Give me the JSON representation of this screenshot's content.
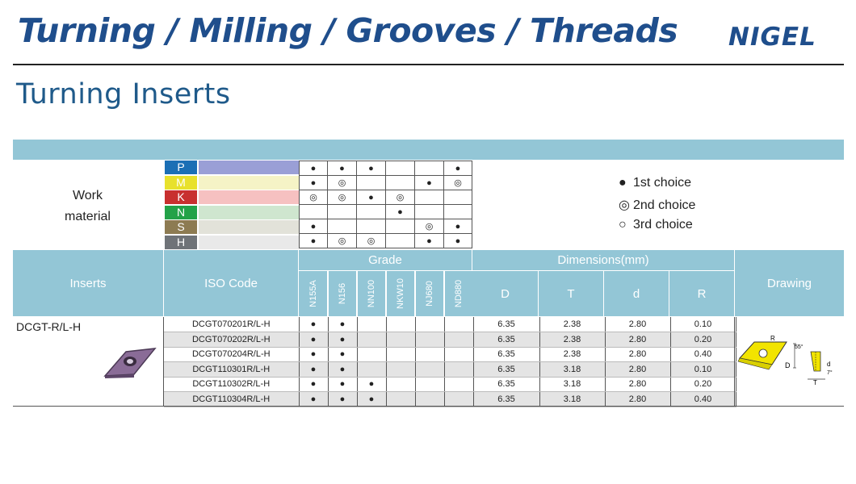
{
  "header": {
    "headline": "Turning / Milling / Grooves / Threads",
    "logo": "NIGEL",
    "subtitle": "Turning Inserts"
  },
  "work_material": {
    "label_line1": "Work",
    "label_line2": "material",
    "rows": [
      {
        "letter": "P",
        "color": "#1b6fb5",
        "bar": "#9a9fd6",
        "marks": [
          "●",
          "●",
          "●",
          "",
          "",
          "●"
        ]
      },
      {
        "letter": "M",
        "color": "#e8e12c",
        "bar": "#f5f3c6",
        "marks": [
          "●",
          "◎",
          "",
          "",
          "●",
          "◎"
        ]
      },
      {
        "letter": "K",
        "color": "#c8302f",
        "bar": "#f6c1c1",
        "marks": [
          "◎",
          "◎",
          "●",
          "◎",
          "",
          ""
        ]
      },
      {
        "letter": "N",
        "color": "#23a248",
        "bar": "#cfe6cf",
        "marks": [
          "",
          "",
          "",
          "●",
          "",
          ""
        ]
      },
      {
        "letter": "S",
        "color": "#8d7b52",
        "bar": "#e2e2d9",
        "marks": [
          "●",
          "",
          "",
          "",
          "◎",
          "●"
        ]
      },
      {
        "letter": "H",
        "color": "#6f7378",
        "bar": "#e9e9e9",
        "marks": [
          "●",
          "◎",
          "◎",
          "",
          "●",
          "●"
        ]
      }
    ]
  },
  "legend": [
    {
      "symbol": "●",
      "label": "1st choice"
    },
    {
      "symbol": "◎",
      "label": "2nd choice"
    },
    {
      "symbol": "○",
      "label": "3rd choice"
    }
  ],
  "table_header": {
    "inserts": "Inserts",
    "iso_code": "ISO Code",
    "grade": "Grade",
    "grades": [
      "N155A",
      "N156",
      "NN100",
      "NKW10",
      "NJ680",
      "ND880"
    ],
    "dimensions": "Dimensions(mm)",
    "dims": [
      "D",
      "T",
      "d",
      "R"
    ],
    "drawing": "Drawing"
  },
  "insert_name": "DCGT-R/L-H",
  "rows": [
    {
      "iso": "DCGT070201R/L-H",
      "marks": [
        "●",
        "●",
        "",
        "",
        "",
        ""
      ],
      "D": "6.35",
      "T": "2.38",
      "d": "2.80",
      "R": "0.10"
    },
    {
      "iso": "DCGT070202R/L-H",
      "marks": [
        "●",
        "●",
        "",
        "",
        "",
        ""
      ],
      "D": "6.35",
      "T": "2.38",
      "d": "2.80",
      "R": "0.20"
    },
    {
      "iso": "DCGT070204R/L-H",
      "marks": [
        "●",
        "●",
        "",
        "",
        "",
        ""
      ],
      "D": "6.35",
      "T": "2.38",
      "d": "2.80",
      "R": "0.40"
    },
    {
      "iso": "DCGT110301R/L-H",
      "marks": [
        "●",
        "●",
        "",
        "",
        "",
        ""
      ],
      "D": "6.35",
      "T": "3.18",
      "d": "2.80",
      "R": "0.10"
    },
    {
      "iso": "DCGT110302R/L-H",
      "marks": [
        "●",
        "●",
        "●",
        "",
        "",
        ""
      ],
      "D": "6.35",
      "T": "3.18",
      "d": "2.80",
      "R": "0.20"
    },
    {
      "iso": "DCGT110304R/L-H",
      "marks": [
        "●",
        "●",
        "●",
        "",
        "",
        ""
      ],
      "D": "6.35",
      "T": "3.18",
      "d": "2.80",
      "R": "0.40"
    }
  ],
  "drawing_labels": {
    "r": "R",
    "angle1": "55°",
    "d_big": "D",
    "d_small": "d",
    "t": "T",
    "angle2": "7°"
  }
}
